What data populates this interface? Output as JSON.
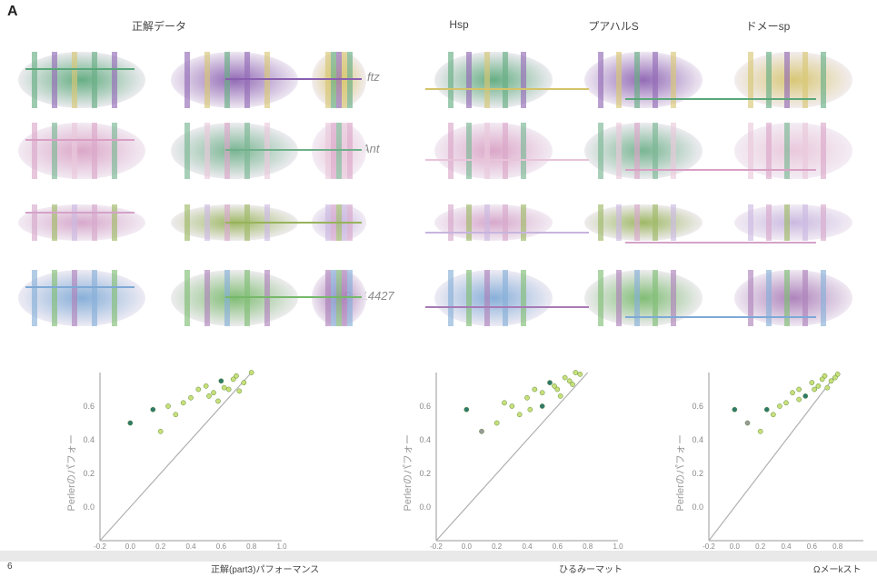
{
  "panel_label": "A",
  "column_headers": [
    "正解データ",
    "",
    "Hsp",
    "プアハルS",
    "ドメーsp"
  ],
  "row_labels": [
    "ftz",
    "Ant",
    "",
    "Prc14427"
  ],
  "embryo_rows": [
    {
      "row": 0,
      "colors": [
        "#5aa87a",
        "#8a5fb0",
        "#d5c36a"
      ]
    },
    {
      "row": 1,
      "colors": [
        "#d9a0c4",
        "#6fb08a",
        "#e8c4d9"
      ]
    },
    {
      "row": 2,
      "colors": [
        "#d4a2c8",
        "#97b35a",
        "#c7b4de"
      ]
    },
    {
      "row": 3,
      "colors": [
        "#7ea9d6",
        "#76b86a",
        "#a77ab6"
      ]
    }
  ],
  "colors": {
    "scatter_light": "#c8df7a",
    "scatter_dark": "#2f7a6a",
    "gray": "#9a9a9a",
    "diag": "#b0b0b0"
  },
  "footer": {
    "left": "6",
    "x_label_1": "正解(part3)パフォーマンス",
    "x_label_2": "ひるみーマット",
    "x_label_3": "Ωメーkスト"
  },
  "chart_data": [
    {
      "type": "scatter",
      "ylabel": "Perlerのパフォー",
      "xlabel": "正解(part3)パフォーマンス",
      "xlim": [
        -0.2,
        1.0
      ],
      "ylim": [
        -0.2,
        0.8
      ],
      "xticks": [
        "-0.2",
        "0.0",
        "0.2",
        "0.4",
        "0.6",
        "0.8",
        "1.0"
      ],
      "yticks": [
        "0.0",
        "0.2",
        "0.4",
        "0.6"
      ],
      "points": [
        [
          0.0,
          0.5
        ],
        [
          0.2,
          0.45
        ],
        [
          0.3,
          0.55
        ],
        [
          0.4,
          0.65
        ],
        [
          0.45,
          0.7
        ],
        [
          0.5,
          0.72
        ],
        [
          0.55,
          0.68
        ],
        [
          0.6,
          0.75
        ],
        [
          0.65,
          0.7
        ],
        [
          0.7,
          0.78
        ],
        [
          0.75,
          0.74
        ],
        [
          0.8,
          0.8
        ],
        [
          0.35,
          0.62
        ],
        [
          0.25,
          0.6
        ],
        [
          0.15,
          0.58
        ],
        [
          0.52,
          0.66
        ],
        [
          0.62,
          0.71
        ],
        [
          0.68,
          0.76
        ],
        [
          0.72,
          0.69
        ],
        [
          0.58,
          0.63
        ]
      ]
    },
    {
      "type": "scatter",
      "ylabel": "Perlerのパフォー",
      "xlabel": "ひるみーマット",
      "xlim": [
        -0.2,
        1.0
      ],
      "ylim": [
        -0.2,
        0.8
      ],
      "xticks": [
        "-0.2",
        "0.0",
        "0.2",
        "0.4",
        "0.6",
        "0.8",
        "1.0"
      ],
      "yticks": [
        "0.0",
        "0.2",
        "0.4",
        "0.6"
      ],
      "points": [
        [
          0.0,
          0.58
        ],
        [
          0.1,
          0.45
        ],
        [
          0.2,
          0.5
        ],
        [
          0.3,
          0.6
        ],
        [
          0.4,
          0.65
        ],
        [
          0.45,
          0.7
        ],
        [
          0.5,
          0.68
        ],
        [
          0.55,
          0.74
        ],
        [
          0.6,
          0.7
        ],
        [
          0.65,
          0.77
        ],
        [
          0.7,
          0.73
        ],
        [
          0.75,
          0.79
        ],
        [
          0.35,
          0.55
        ],
        [
          0.25,
          0.62
        ],
        [
          0.5,
          0.6
        ],
        [
          0.58,
          0.72
        ],
        [
          0.62,
          0.66
        ],
        [
          0.68,
          0.75
        ],
        [
          0.42,
          0.58
        ],
        [
          0.72,
          0.8
        ]
      ]
    },
    {
      "type": "scatter",
      "ylabel": "Perlerのパフォー",
      "xlabel": "Ωメーkスト",
      "xlim": [
        -0.2,
        1.0
      ],
      "ylim": [
        -0.2,
        0.8
      ],
      "xticks": [
        "-0.2",
        "0.0",
        "0.2",
        "0.4",
        "0.6",
        "0.8"
      ],
      "yticks": [
        "0.0",
        "0.2",
        "0.4",
        "0.6"
      ],
      "points": [
        [
          0.0,
          0.58
        ],
        [
          0.1,
          0.5
        ],
        [
          0.2,
          0.45
        ],
        [
          0.3,
          0.55
        ],
        [
          0.4,
          0.62
        ],
        [
          0.45,
          0.68
        ],
        [
          0.5,
          0.7
        ],
        [
          0.55,
          0.66
        ],
        [
          0.6,
          0.74
        ],
        [
          0.65,
          0.72
        ],
        [
          0.7,
          0.78
        ],
        [
          0.75,
          0.75
        ],
        [
          0.8,
          0.79
        ],
        [
          0.35,
          0.6
        ],
        [
          0.25,
          0.58
        ],
        [
          0.5,
          0.64
        ],
        [
          0.62,
          0.7
        ],
        [
          0.68,
          0.76
        ],
        [
          0.72,
          0.71
        ],
        [
          0.78,
          0.77
        ]
      ]
    }
  ]
}
